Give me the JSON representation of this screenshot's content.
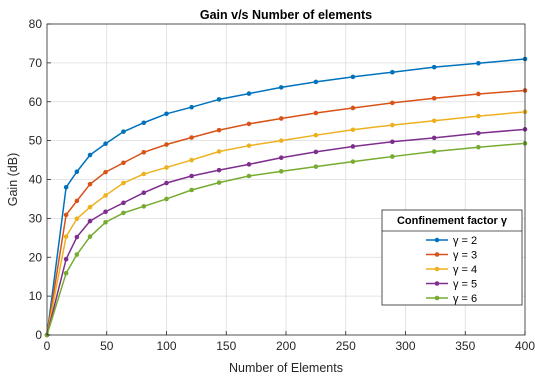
{
  "chart_data": {
    "type": "line",
    "title": "Gain v/s Number of elements",
    "xlabel": "Number of Elements",
    "ylabel": "Gain (dB)",
    "xlim": [
      0,
      400
    ],
    "ylim": [
      0,
      80
    ],
    "xticks": [
      0,
      50,
      100,
      150,
      200,
      250,
      300,
      350,
      400
    ],
    "yticks": [
      0,
      10,
      20,
      30,
      40,
      50,
      60,
      70,
      80
    ],
    "grid": true,
    "legend": {
      "title": "Confinement factor γ",
      "placement": "lower-right"
    },
    "x": [
      0,
      16,
      25,
      36,
      49,
      64,
      81,
      100,
      121,
      144,
      169,
      196,
      225,
      256,
      289,
      324,
      361,
      400
    ],
    "series": [
      {
        "name": "γ = 2",
        "color": "#0072BD",
        "values": [
          0,
          38.0,
          42.0,
          46.3,
          49.2,
          52.3,
          54.6,
          56.9,
          58.6,
          60.6,
          62.1,
          63.7,
          65.1,
          66.4,
          67.6,
          68.9,
          69.9,
          71.0
        ]
      },
      {
        "name": "γ = 3",
        "color": "#D95319",
        "values": [
          0,
          30.9,
          34.5,
          38.8,
          41.9,
          44.3,
          47.0,
          49.0,
          50.8,
          52.7,
          54.3,
          55.7,
          57.1,
          58.4,
          59.7,
          60.9,
          62.0,
          62.9
        ]
      },
      {
        "name": "γ = 4",
        "color": "#EDB120",
        "values": [
          0,
          25.3,
          29.9,
          32.9,
          35.9,
          39.1,
          41.4,
          43.1,
          45.0,
          47.2,
          48.7,
          50.0,
          51.4,
          52.8,
          54.0,
          55.1,
          56.3,
          57.4
        ]
      },
      {
        "name": "γ = 5",
        "color": "#7E2F8E",
        "values": [
          0,
          19.5,
          25.2,
          29.3,
          31.7,
          34.0,
          36.6,
          39.1,
          40.9,
          42.4,
          43.9,
          45.6,
          47.1,
          48.5,
          49.7,
          50.7,
          51.9,
          52.9
        ]
      },
      {
        "name": "γ = 6",
        "color": "#77AC30",
        "values": [
          0,
          15.9,
          20.7,
          25.3,
          29.0,
          31.4,
          33.1,
          35.0,
          37.3,
          39.2,
          40.9,
          42.1,
          43.3,
          44.6,
          45.9,
          47.2,
          48.3,
          49.3
        ]
      }
    ]
  }
}
